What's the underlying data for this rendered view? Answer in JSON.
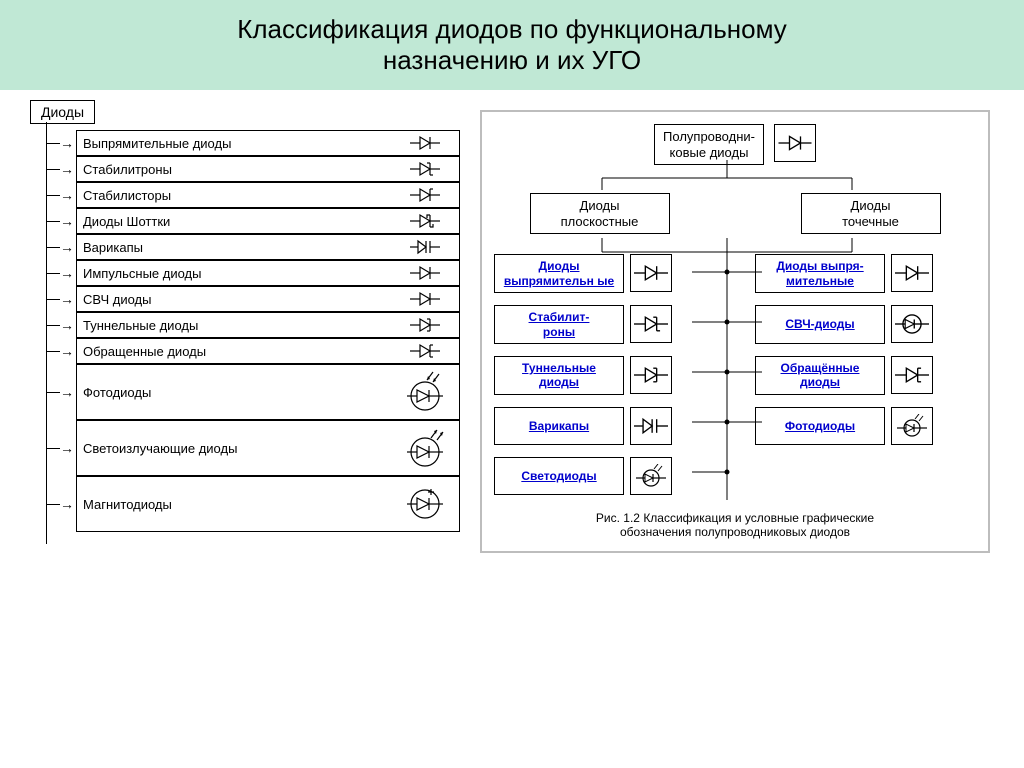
{
  "header": {
    "line1": "Классификация диодов по функциональному",
    "line2": "назначению и их УГО"
  },
  "left": {
    "root": "Диоды",
    "items": [
      {
        "label": "Выпрямительные диоды",
        "symbol": "diode",
        "tall": false
      },
      {
        "label": "Стабилитроны",
        "symbol": "zener",
        "tall": false
      },
      {
        "label": "Стабилисторы",
        "symbol": "zener2",
        "tall": false
      },
      {
        "label": "Диоды Шоттки",
        "symbol": "schottky",
        "tall": false
      },
      {
        "label": "Варикапы",
        "symbol": "varicap",
        "tall": false
      },
      {
        "label": "Импульсные диоды",
        "symbol": "diode",
        "tall": false
      },
      {
        "label": "СВЧ диоды",
        "symbol": "diode",
        "tall": false
      },
      {
        "label": "Туннельные диоды",
        "symbol": "tunnel",
        "tall": false
      },
      {
        "label": "Обращенные диоды",
        "symbol": "backward",
        "tall": false
      },
      {
        "label": "Фотодиоды",
        "symbol": "photo",
        "tall": true
      },
      {
        "label": "Светоизлучающие диоды",
        "symbol": "led",
        "tall": true
      },
      {
        "label": "Магнитодиоды",
        "symbol": "magneto",
        "tall": true
      }
    ]
  },
  "right": {
    "root": {
      "line1": "Полупроводни-",
      "line2": "ковые диоды"
    },
    "mid": [
      {
        "line1": "Диоды",
        "line2": "плоскостные"
      },
      {
        "line1": "Диоды",
        "line2": "точечные"
      }
    ],
    "grid": [
      {
        "label": "Диоды выпрямительн ые",
        "symbol": "diode"
      },
      {
        "label": "Диоды выпря-\nмительные",
        "symbol": "diode"
      },
      {
        "label": "Стабилит-\nроны",
        "symbol": "zener"
      },
      {
        "label": "СВЧ-диоды",
        "symbol": "circle-diode"
      },
      {
        "label": "Туннельные диоды",
        "symbol": "tunnel"
      },
      {
        "label": "Обращённые диоды",
        "symbol": "backward"
      },
      {
        "label": "Варикапы",
        "symbol": "varicap"
      },
      {
        "label": "Фотодиоды",
        "symbol": "photo-circle"
      },
      {
        "label": "Светодиоды",
        "symbol": "led-circle"
      }
    ],
    "caption": {
      "line1": "Рис. 1.2 Классификация и условные графические",
      "line2": "обозначения полупроводниковых диодов"
    }
  },
  "colors": {
    "header_bg": "#c0e8d5",
    "link": "#0000cc",
    "border": "#000000",
    "panel_border": "#bdbdbd"
  }
}
